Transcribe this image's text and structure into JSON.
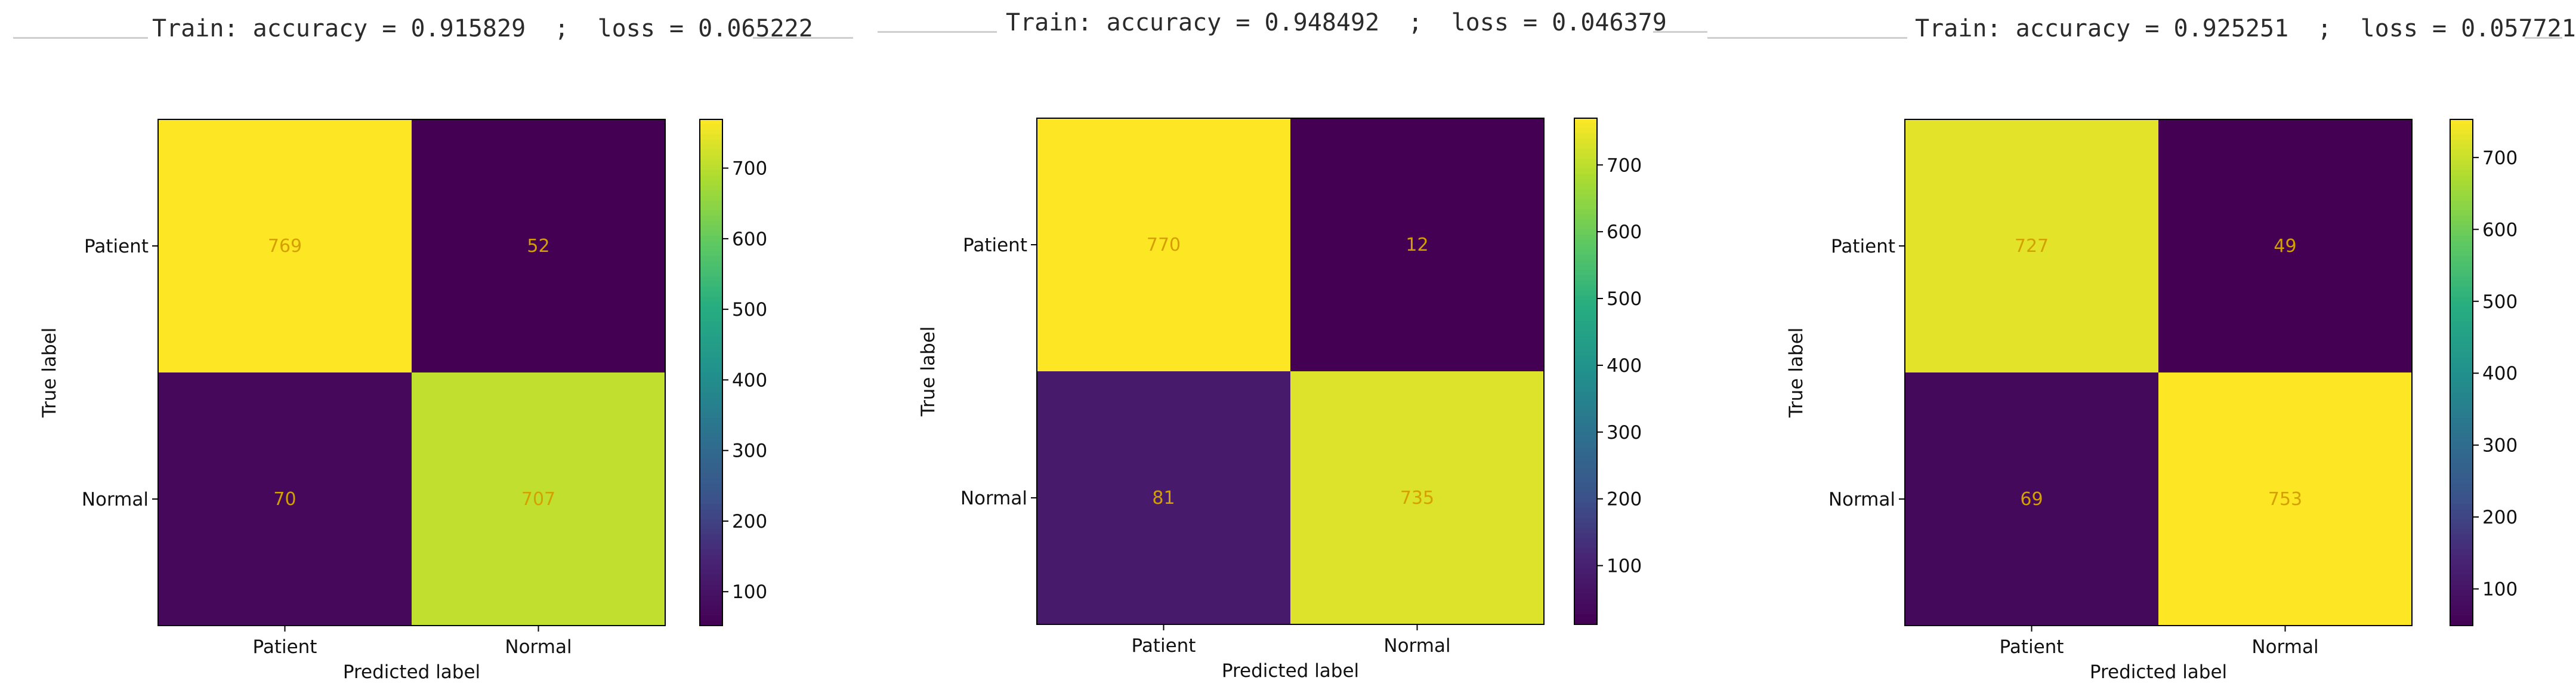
{
  "chart_data": [
    {
      "type": "heatmap",
      "header": {
        "prefix": "Train:",
        "accuracy_label": "accuracy",
        "accuracy_value": "0.915829",
        "separator": ";",
        "loss_label": "loss",
        "loss_value": "0.065222"
      },
      "rows": [
        "Patient",
        "Normal"
      ],
      "cols": [
        "Patient",
        "Normal"
      ],
      "matrix": [
        [
          769,
          52
        ],
        [
          70,
          707
        ]
      ],
      "xlabel": "Predicted label",
      "ylabel": "True label",
      "colorbar": {
        "min": 52,
        "max": 769,
        "ticks": [
          100,
          200,
          300,
          400,
          500,
          600,
          700
        ]
      }
    },
    {
      "type": "heatmap",
      "header": {
        "prefix": "Train:",
        "accuracy_label": "accuracy",
        "accuracy_value": "0.948492",
        "separator": ";",
        "loss_label": "loss",
        "loss_value": "0.046379"
      },
      "rows": [
        "Patient",
        "Normal"
      ],
      "cols": [
        "Patient",
        "Normal"
      ],
      "matrix": [
        [
          770,
          12
        ],
        [
          81,
          735
        ]
      ],
      "xlabel": "Predicted label",
      "ylabel": "True label",
      "colorbar": {
        "min": 12,
        "max": 770,
        "ticks": [
          100,
          200,
          300,
          400,
          500,
          600,
          700
        ]
      }
    },
    {
      "type": "heatmap",
      "header": {
        "prefix": "Train:",
        "accuracy_label": "accuracy",
        "accuracy_value": "0.925251",
        "separator": ";",
        "loss_label": "loss",
        "loss_value": "0.057721"
      },
      "rows": [
        "Patient",
        "Normal"
      ],
      "cols": [
        "Patient",
        "Normal"
      ],
      "matrix": [
        [
          727,
          49
        ],
        [
          69,
          753
        ]
      ],
      "xlabel": "Predicted label",
      "ylabel": "True label",
      "colorbar": {
        "min": 49,
        "max": 753,
        "ticks": [
          100,
          200,
          300,
          400,
          500,
          600,
          700
        ]
      }
    }
  ]
}
